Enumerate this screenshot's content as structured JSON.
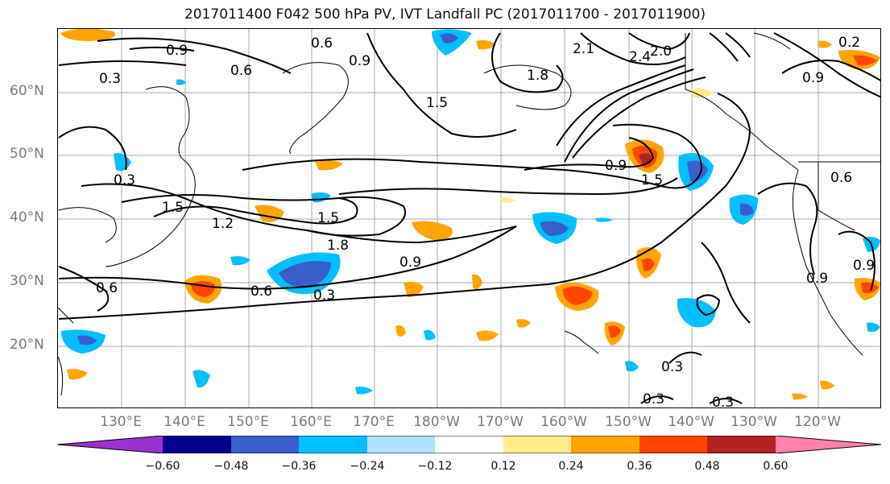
{
  "title": "2017011400 F042 500 hPa PV, IVT Landfall PC (2017011700 - 2017011900)",
  "lat_labels": [
    "60°N",
    "50°N",
    "40°N",
    "30°N",
    "20°N"
  ],
  "lon_labels": [
    "130°E",
    "140°E",
    "150°E",
    "160°E",
    "170°E",
    "180°W",
    "170°W",
    "160°W",
    "150°W",
    "140°W",
    "130°W",
    "120°W"
  ],
  "contour_labels": [
    "0.9",
    "0.6",
    "0.3",
    "0.6",
    "0.9",
    "1.5",
    "1.8",
    "2.1",
    "2.4",
    "2.0",
    "0.9",
    "0.2",
    "0.9",
    "0.3",
    "1.5",
    "1.2",
    "1.5",
    "1.8",
    "0.9",
    "0.6",
    "0.3",
    "0.6",
    "0.9",
    "1.5",
    "0.9",
    "0.6",
    "0.3",
    "0.3",
    "0.3"
  ],
  "colorbar": {
    "tick_labels": [
      "−0.60",
      "−0.48",
      "−0.36",
      "−0.24",
      "−0.12",
      "0.12",
      "0.24",
      "0.36",
      "0.48",
      "0.60"
    ],
    "colors": [
      "#9b30d0",
      "#00008b",
      "#3a5fcd",
      "#00bfff",
      "#b0e2ff",
      "#ffffff",
      "#ffec8b",
      "#ffa500",
      "#ff4500",
      "#b22222",
      "#ff82ab"
    ]
  },
  "fill_colors": {
    "neg_light": "#b0e2ff",
    "neg_mid": "#00bfff",
    "neg_strong": "#3a5fcd",
    "neg_max": "#00008b",
    "pos_light": "#ffec8b",
    "pos_mid": "#ffa500",
    "pos_strong": "#ff4500",
    "pos_max": "#b22222",
    "pos_extreme": "#ff82ab"
  }
}
